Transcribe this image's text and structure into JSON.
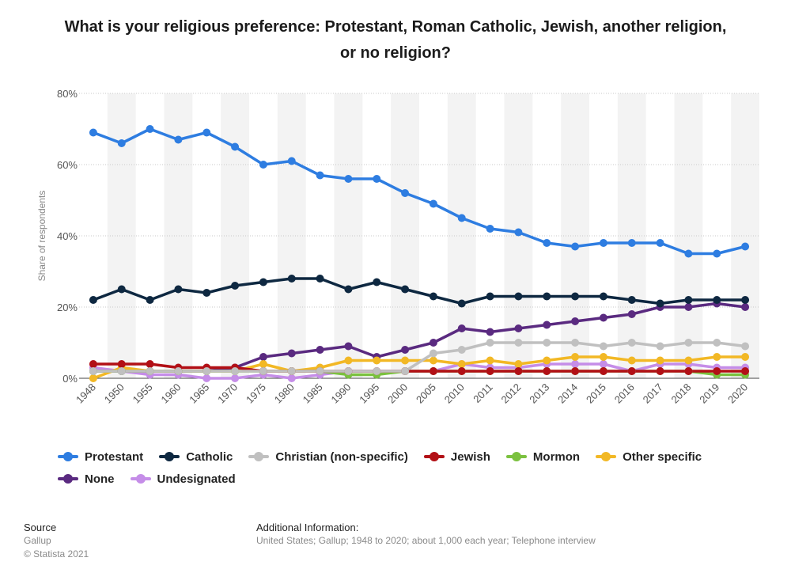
{
  "title": "What is your religious preference: Protestant, Roman Catholic, Jewish, another religion, or no religion?",
  "chart_data": {
    "type": "line",
    "title": "What is your religious preference: Protestant, Roman Catholic, Jewish, another religion, or no religion?",
    "xlabel": "",
    "ylabel": "Share of respondents",
    "ylim": [
      0,
      80
    ],
    "yticks": [
      "0%",
      "20%",
      "40%",
      "60%",
      "80%"
    ],
    "ytick_values": [
      0,
      20,
      40,
      60,
      80
    ],
    "grid": "horizontal dotted, alternating column shading",
    "legend_position": "bottom",
    "categories": [
      "1948",
      "1950",
      "1955",
      "1960",
      "1965",
      "1970",
      "1975",
      "1980",
      "1985",
      "1990",
      "1995",
      "2000",
      "2005",
      "2010",
      "2011",
      "2012",
      "2013",
      "2014",
      "2015",
      "2016",
      "2017",
      "2018",
      "2019",
      "2020"
    ],
    "series": [
      {
        "name": "Protestant",
        "color": "#2e7de1",
        "values": [
          69,
          66,
          70,
          67,
          69,
          65,
          60,
          61,
          57,
          56,
          56,
          52,
          49,
          45,
          42,
          41,
          38,
          37,
          38,
          38,
          38,
          35,
          35,
          37
        ]
      },
      {
        "name": "Catholic",
        "color": "#0e2841",
        "values": [
          22,
          25,
          22,
          25,
          24,
          26,
          27,
          28,
          28,
          25,
          27,
          25,
          23,
          21,
          23,
          23,
          23,
          23,
          23,
          22,
          21,
          22,
          22,
          22
        ]
      },
      {
        "name": "Christian (non-specific)",
        "color": "#c0c0c0",
        "values": [
          2,
          2,
          2,
          2,
          2,
          2,
          2,
          2,
          2,
          2,
          2,
          2,
          7,
          8,
          10,
          10,
          10,
          10,
          9,
          10,
          9,
          10,
          10,
          9
        ]
      },
      {
        "name": "Jewish",
        "color": "#b21016",
        "values": [
          4,
          4,
          4,
          3,
          3,
          3,
          2,
          2,
          2,
          2,
          2,
          2,
          2,
          2,
          2,
          2,
          2,
          2,
          2,
          2,
          2,
          2,
          2,
          2
        ]
      },
      {
        "name": "Mormon",
        "color": "#7bc13f",
        "values": [
          2,
          2,
          2,
          2,
          2,
          2,
          2,
          2,
          2,
          1,
          1,
          2,
          2,
          2,
          2,
          2,
          2,
          2,
          2,
          2,
          2,
          2,
          1,
          1
        ]
      },
      {
        "name": "Other specific",
        "color": "#f2b825",
        "values": [
          0,
          3,
          2,
          2,
          2,
          2,
          4,
          2,
          3,
          5,
          5,
          5,
          5,
          4,
          5,
          4,
          5,
          6,
          6,
          5,
          5,
          5,
          6,
          6
        ]
      },
      {
        "name": "None",
        "color": "#5a2a80",
        "values": [
          2,
          2,
          2,
          2,
          2,
          3,
          6,
          7,
          8,
          9,
          6,
          8,
          10,
          14,
          13,
          14,
          15,
          16,
          17,
          18,
          20,
          20,
          21,
          20
        ]
      },
      {
        "name": "Undesignated",
        "color": "#c58de8",
        "values": [
          3,
          2,
          1,
          1,
          0,
          0,
          1,
          0,
          1,
          2,
          2,
          2,
          2,
          4,
          3,
          3,
          4,
          4,
          4,
          2,
          4,
          4,
          3,
          3
        ]
      }
    ]
  },
  "footer": {
    "source_heading": "Source",
    "source_lines": [
      "Gallup",
      "© Statista 2021"
    ],
    "info_heading": "Additional Information:",
    "info_text": "United States; Gallup; 1948 to 2020; about 1,000 each year; Telephone interview"
  }
}
